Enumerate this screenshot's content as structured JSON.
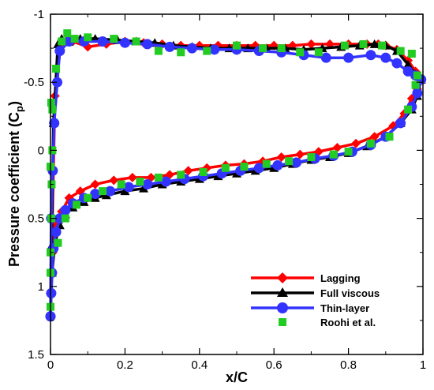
{
  "chart_data": {
    "type": "line",
    "title": "",
    "xlabel": "x/C",
    "ylabel": "Pressure coefficient (C",
    "ylabel_sub": "p",
    "ylabel_close": ")",
    "xlim": [
      0,
      1
    ],
    "ylim": [
      -1,
      1.5
    ],
    "y_inverted": true,
    "xticks": [
      0,
      0.2,
      0.4,
      0.6,
      0.8,
      1
    ],
    "xtick_labels": [
      "0",
      "0.2",
      "0.4",
      "0.6",
      "0.8",
      "1"
    ],
    "yticks": [
      -1,
      -0.5,
      0,
      0.5,
      1,
      1.5
    ],
    "ytick_labels": [
      "-1",
      "-0.5",
      "0",
      "0.5",
      "1",
      "1.5"
    ],
    "grid": false,
    "legend_position": "bottom-right",
    "series": [
      {
        "name": "Lagging",
        "color": "#ff0000",
        "marker": "diamond",
        "line": true,
        "upper": [
          [
            0.0,
            1.05
          ],
          [
            0.005,
            0.5
          ],
          [
            0.012,
            -0.4
          ],
          [
            0.025,
            -0.72
          ],
          [
            0.04,
            -0.8
          ],
          [
            0.06,
            -0.8
          ],
          [
            0.1,
            -0.76
          ],
          [
            0.15,
            -0.78
          ],
          [
            0.2,
            -0.8
          ],
          [
            0.25,
            -0.79
          ],
          [
            0.3,
            -0.78
          ],
          [
            0.35,
            -0.77
          ],
          [
            0.4,
            -0.77
          ],
          [
            0.45,
            -0.77
          ],
          [
            0.5,
            -0.77
          ],
          [
            0.55,
            -0.77
          ],
          [
            0.6,
            -0.77
          ],
          [
            0.65,
            -0.77
          ],
          [
            0.7,
            -0.78
          ],
          [
            0.75,
            -0.78
          ],
          [
            0.8,
            -0.78
          ],
          [
            0.85,
            -0.78
          ],
          [
            0.88,
            -0.78
          ],
          [
            0.9,
            -0.77
          ],
          [
            0.93,
            -0.74
          ],
          [
            0.96,
            -0.66
          ],
          [
            0.98,
            -0.58
          ],
          [
            0.995,
            -0.52
          ]
        ],
        "lower": [
          [
            0.0,
            1.05
          ],
          [
            0.006,
            0.75
          ],
          [
            0.015,
            0.55
          ],
          [
            0.03,
            0.45
          ],
          [
            0.05,
            0.35
          ],
          [
            0.08,
            0.3
          ],
          [
            0.12,
            0.25
          ],
          [
            0.17,
            0.22
          ],
          [
            0.22,
            0.2
          ],
          [
            0.27,
            0.2
          ],
          [
            0.32,
            0.18
          ],
          [
            0.37,
            0.15
          ],
          [
            0.42,
            0.13
          ],
          [
            0.47,
            0.11
          ],
          [
            0.52,
            0.1
          ],
          [
            0.57,
            0.08
          ],
          [
            0.62,
            0.05
          ],
          [
            0.67,
            0.03
          ],
          [
            0.72,
            0.01
          ],
          [
            0.77,
            -0.02
          ],
          [
            0.82,
            -0.05
          ],
          [
            0.87,
            -0.1
          ],
          [
            0.92,
            -0.18
          ],
          [
            0.95,
            -0.27
          ],
          [
            0.97,
            -0.38
          ],
          [
            0.985,
            -0.45
          ],
          [
            0.995,
            -0.52
          ]
        ]
      },
      {
        "name": "Full viscous",
        "color": "#000000",
        "marker": "triangle",
        "line": true,
        "upper": [
          [
            0.0,
            1.2
          ],
          [
            0.003,
            0.7
          ],
          [
            0.008,
            -0.2
          ],
          [
            0.02,
            -0.78
          ],
          [
            0.03,
            -0.82
          ],
          [
            0.05,
            -0.8
          ],
          [
            0.08,
            -0.82
          ],
          [
            0.12,
            -0.82
          ],
          [
            0.18,
            -0.81
          ],
          [
            0.23,
            -0.8
          ],
          [
            0.28,
            -0.79
          ],
          [
            0.33,
            -0.77
          ],
          [
            0.38,
            -0.76
          ],
          [
            0.43,
            -0.75
          ],
          [
            0.48,
            -0.75
          ],
          [
            0.53,
            -0.75
          ],
          [
            0.58,
            -0.75
          ],
          [
            0.63,
            -0.75
          ],
          [
            0.68,
            -0.74
          ],
          [
            0.73,
            -0.75
          ],
          [
            0.78,
            -0.76
          ],
          [
            0.83,
            -0.77
          ],
          [
            0.87,
            -0.78
          ],
          [
            0.9,
            -0.77
          ],
          [
            0.93,
            -0.73
          ],
          [
            0.96,
            -0.63
          ],
          [
            0.98,
            -0.56
          ],
          [
            0.995,
            -0.52
          ]
        ],
        "lower": [
          [
            0.0,
            1.2
          ],
          [
            0.004,
            0.9
          ],
          [
            0.012,
            0.68
          ],
          [
            0.025,
            0.55
          ],
          [
            0.04,
            0.47
          ],
          [
            0.06,
            0.42
          ],
          [
            0.09,
            0.38
          ],
          [
            0.12,
            0.35
          ],
          [
            0.15,
            0.33
          ],
          [
            0.2,
            0.3
          ],
          [
            0.25,
            0.28
          ],
          [
            0.3,
            0.25
          ],
          [
            0.35,
            0.23
          ],
          [
            0.4,
            0.21
          ],
          [
            0.45,
            0.19
          ],
          [
            0.5,
            0.17
          ],
          [
            0.55,
            0.15
          ],
          [
            0.6,
            0.13
          ],
          [
            0.65,
            0.1
          ],
          [
            0.7,
            0.07
          ],
          [
            0.75,
            0.05
          ],
          [
            0.8,
            0.02
          ],
          [
            0.85,
            -0.03
          ],
          [
            0.9,
            -0.1
          ],
          [
            0.94,
            -0.2
          ],
          [
            0.97,
            -0.3
          ],
          [
            0.985,
            -0.4
          ],
          [
            0.995,
            -0.52
          ]
        ]
      },
      {
        "name": "Thin-layer",
        "color": "#3333ff",
        "marker": "circle",
        "line": true,
        "upper": [
          [
            0.0,
            1.22
          ],
          [
            0.002,
            0.5
          ],
          [
            0.006,
            0.15
          ],
          [
            0.01,
            -0.2
          ],
          [
            0.018,
            -0.5
          ],
          [
            0.025,
            -0.73
          ],
          [
            0.05,
            -0.8
          ],
          [
            0.09,
            -0.8
          ],
          [
            0.14,
            -0.8
          ],
          [
            0.2,
            -0.79
          ],
          [
            0.26,
            -0.78
          ],
          [
            0.32,
            -0.76
          ],
          [
            0.38,
            -0.75
          ],
          [
            0.44,
            -0.74
          ],
          [
            0.5,
            -0.74
          ],
          [
            0.56,
            -0.73
          ],
          [
            0.62,
            -0.72
          ],
          [
            0.68,
            -0.7
          ],
          [
            0.74,
            -0.68
          ],
          [
            0.8,
            -0.68
          ],
          [
            0.86,
            -0.7
          ],
          [
            0.9,
            -0.68
          ],
          [
            0.93,
            -0.64
          ],
          [
            0.96,
            -0.58
          ],
          [
            0.98,
            -0.55
          ],
          [
            0.995,
            -0.52
          ]
        ],
        "lower": [
          [
            0.0,
            1.22
          ],
          [
            0.002,
            1.05
          ],
          [
            0.004,
            0.9
          ],
          [
            0.008,
            0.72
          ],
          [
            0.015,
            0.6
          ],
          [
            0.025,
            0.5
          ],
          [
            0.04,
            0.44
          ],
          [
            0.06,
            0.39
          ],
          [
            0.09,
            0.35
          ],
          [
            0.12,
            0.32
          ],
          [
            0.16,
            0.3
          ],
          [
            0.21,
            0.27
          ],
          [
            0.26,
            0.25
          ],
          [
            0.31,
            0.23
          ],
          [
            0.36,
            0.21
          ],
          [
            0.41,
            0.19
          ],
          [
            0.46,
            0.17
          ],
          [
            0.51,
            0.15
          ],
          [
            0.56,
            0.13
          ],
          [
            0.61,
            0.11
          ],
          [
            0.66,
            0.09
          ],
          [
            0.71,
            0.06
          ],
          [
            0.76,
            0.04
          ],
          [
            0.81,
            0.01
          ],
          [
            0.86,
            -0.04
          ],
          [
            0.9,
            -0.1
          ],
          [
            0.94,
            -0.2
          ],
          [
            0.97,
            -0.32
          ],
          [
            0.985,
            -0.42
          ],
          [
            0.995,
            -0.52
          ]
        ]
      },
      {
        "name": "Roohi et al.",
        "color": "#22cc22",
        "marker": "square",
        "line": false,
        "points": [
          [
            0.0,
            1.15
          ],
          [
            0.0,
            0.9
          ],
          [
            0.002,
            0.5
          ],
          [
            0.003,
            0.25
          ],
          [
            0.005,
            -0.3
          ],
          [
            0.015,
            -0.6
          ],
          [
            0.03,
            -0.8
          ],
          [
            0.045,
            -0.86
          ],
          [
            0.065,
            -0.82
          ],
          [
            0.1,
            -0.83
          ],
          [
            0.17,
            -0.82
          ],
          [
            0.23,
            -0.8
          ],
          [
            0.29,
            -0.73
          ],
          [
            0.35,
            -0.72
          ],
          [
            0.42,
            -0.73
          ],
          [
            0.5,
            -0.77
          ],
          [
            0.57,
            -0.75
          ],
          [
            0.62,
            -0.75
          ],
          [
            0.67,
            -0.72
          ],
          [
            0.72,
            -0.72
          ],
          [
            0.79,
            -0.77
          ],
          [
            0.84,
            -0.78
          ],
          [
            0.89,
            -0.77
          ],
          [
            0.94,
            -0.73
          ],
          [
            0.97,
            -0.71
          ],
          [
            0.985,
            -0.55
          ],
          [
            0.0,
            0.75
          ],
          [
            0.005,
            0.0
          ],
          [
            0.02,
            0.68
          ],
          [
            0.04,
            0.5
          ],
          [
            0.07,
            0.4
          ],
          [
            0.1,
            0.35
          ],
          [
            0.14,
            0.3
          ],
          [
            0.19,
            0.25
          ],
          [
            0.24,
            0.23
          ],
          [
            0.29,
            0.2
          ],
          [
            0.35,
            0.18
          ],
          [
            0.41,
            0.16
          ],
          [
            0.47,
            0.13
          ],
          [
            0.52,
            0.12
          ],
          [
            0.58,
            0.1
          ],
          [
            0.64,
            0.08
          ],
          [
            0.7,
            0.05
          ],
          [
            0.76,
            0.03
          ],
          [
            0.8,
            0.01
          ],
          [
            0.86,
            -0.05
          ],
          [
            0.91,
            -0.1
          ],
          [
            0.96,
            -0.3
          ],
          [
            0.98,
            -0.48
          ],
          [
            0.0,
            0.12
          ],
          [
            0.002,
            -0.35
          ]
        ]
      }
    ]
  }
}
